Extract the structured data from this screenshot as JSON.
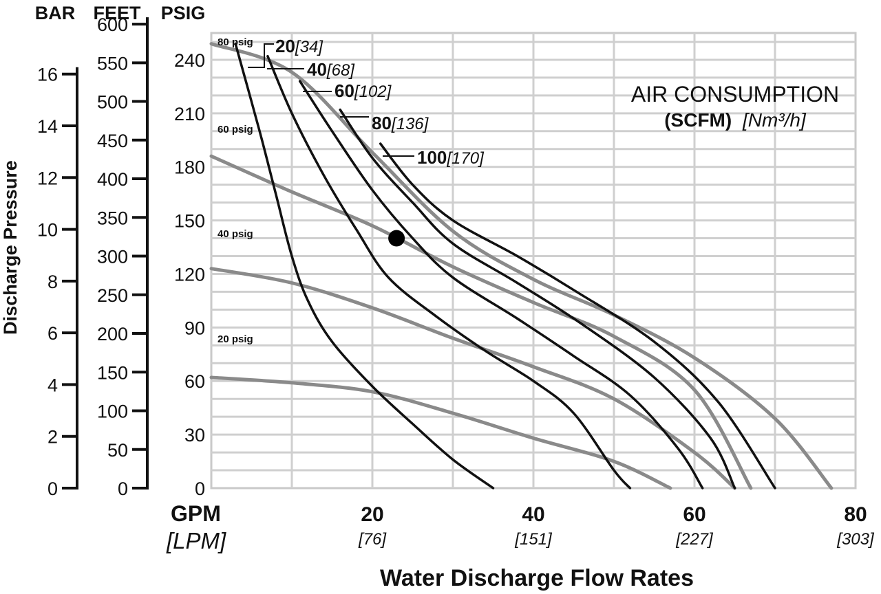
{
  "chart_data": {
    "type": "line",
    "title": "AIR CONSUMPTION",
    "legend": {
      "line1": "AIR CONSUMPTION",
      "line2_bold": "(SCFM)",
      "line2_italic": "[Nm³/h]"
    },
    "xlabel": "Water Discharge Flow Rates",
    "x_unit_primary": "GPM",
    "x_unit_secondary": "[LPM]",
    "xlim": [
      0,
      80
    ],
    "x_ticks": [
      {
        "value": 20,
        "label": "20",
        "sub": "[76]"
      },
      {
        "value": 40,
        "label": "40",
        "sub": "[151]"
      },
      {
        "value": 60,
        "label": "60",
        "sub": "[227]"
      },
      {
        "value": 80,
        "label": "80",
        "sub": "[303]"
      }
    ],
    "ylabel": "Discharge Pressure",
    "ylim": [
      0,
      255
    ],
    "y_axes": [
      {
        "header": "BAR",
        "per_psig": 14.5,
        "ticks": [
          "0",
          "2",
          "4",
          "6",
          "8",
          "10",
          "12",
          "14",
          "16"
        ],
        "values": [
          0,
          2,
          4,
          6,
          8,
          10,
          12,
          14,
          16
        ]
      },
      {
        "header": "FEET",
        "per_psig": 0.4333,
        "ticks": [
          "0",
          "50",
          "100",
          "150",
          "200",
          "250",
          "300",
          "350",
          "400",
          "450",
          "500",
          "550",
          "600"
        ],
        "values": [
          0,
          50,
          100,
          150,
          200,
          250,
          300,
          350,
          400,
          450,
          500,
          550,
          600
        ]
      },
      {
        "header": "PSIG",
        "per_psig": 1,
        "ticks": [
          "0",
          "30",
          "60",
          "90",
          "120",
          "150",
          "180",
          "210",
          "240"
        ],
        "values": [
          0,
          30,
          60,
          90,
          120,
          150,
          180,
          210,
          240
        ]
      }
    ],
    "grid": true,
    "air_inlet_pressure_curves": [
      {
        "label": "80 psig",
        "color": "#8a8a8a",
        "points": [
          [
            0,
            249
          ],
          [
            10,
            233
          ],
          [
            20,
            188
          ],
          [
            30,
            144
          ],
          [
            40,
            117
          ],
          [
            50,
            97
          ],
          [
            60,
            73
          ],
          [
            70,
            39
          ],
          [
            77,
            0
          ]
        ]
      },
      {
        "label": "60 psig",
        "color": "#8a8a8a",
        "points": [
          [
            0,
            186
          ],
          [
            10,
            166
          ],
          [
            20,
            147
          ],
          [
            30,
            124
          ],
          [
            40,
            104
          ],
          [
            50,
            85
          ],
          [
            60,
            55
          ],
          [
            67,
            0
          ]
        ]
      },
      {
        "label": "40 psig",
        "color": "#8a8a8a",
        "points": [
          [
            0,
            123
          ],
          [
            10,
            115
          ],
          [
            20,
            101
          ],
          [
            30,
            84
          ],
          [
            40,
            68
          ],
          [
            50,
            50
          ],
          [
            60,
            20
          ],
          [
            65,
            0
          ]
        ]
      },
      {
        "label": "20 psig",
        "color": "#8a8a8a",
        "points": [
          [
            0,
            62
          ],
          [
            10,
            59
          ],
          [
            20,
            54
          ],
          [
            30,
            42
          ],
          [
            40,
            28
          ],
          [
            50,
            15
          ],
          [
            57,
            0
          ]
        ]
      }
    ],
    "air_consumption_curves": [
      {
        "scfm": "20",
        "nm3h": "[34]",
        "color": "#111111",
        "points": [
          [
            3,
            249
          ],
          [
            6,
            200
          ],
          [
            8,
            165
          ],
          [
            10,
            130
          ],
          [
            12,
            105
          ],
          [
            15,
            82
          ],
          [
            20,
            57
          ],
          [
            25,
            36
          ],
          [
            30,
            16
          ],
          [
            35,
            0
          ]
        ]
      },
      {
        "scfm": "40",
        "nm3h": "[68]",
        "color": "#111111",
        "points": [
          [
            7,
            242
          ],
          [
            10,
            210
          ],
          [
            14,
            175
          ],
          [
            18,
            145
          ],
          [
            22,
            118
          ],
          [
            28,
            96
          ],
          [
            34,
            77
          ],
          [
            40,
            60
          ],
          [
            45,
            42
          ],
          [
            50,
            10
          ],
          [
            52,
            0
          ]
        ]
      },
      {
        "scfm": "60",
        "nm3h": "[102]",
        "color": "#111111",
        "points": [
          [
            11,
            228
          ],
          [
            15,
            200
          ],
          [
            20,
            167
          ],
          [
            25,
            140
          ],
          [
            30,
            118
          ],
          [
            38,
            95
          ],
          [
            45,
            74
          ],
          [
            52,
            52
          ],
          [
            58,
            22
          ],
          [
            61,
            0
          ]
        ]
      },
      {
        "scfm": "80",
        "nm3h": "[136]",
        "color": "#111111",
        "points": [
          [
            16,
            212
          ],
          [
            20,
            185
          ],
          [
            25,
            160
          ],
          [
            30,
            137
          ],
          [
            38,
            115
          ],
          [
            46,
            92
          ],
          [
            55,
            62
          ],
          [
            62,
            28
          ],
          [
            65,
            0
          ]
        ]
      },
      {
        "scfm": "100",
        "nm3h": "[170]",
        "color": "#111111",
        "points": [
          [
            21,
            193
          ],
          [
            25,
            170
          ],
          [
            30,
            150
          ],
          [
            38,
            130
          ],
          [
            45,
            111
          ],
          [
            55,
            82
          ],
          [
            63,
            48
          ],
          [
            70,
            0
          ]
        ]
      }
    ],
    "marker": {
      "x": 23,
      "y": 140,
      "color": "#000000"
    },
    "psig_labels": [
      "80 psig",
      "60 psig",
      "40 psig",
      "20 psig"
    ]
  }
}
